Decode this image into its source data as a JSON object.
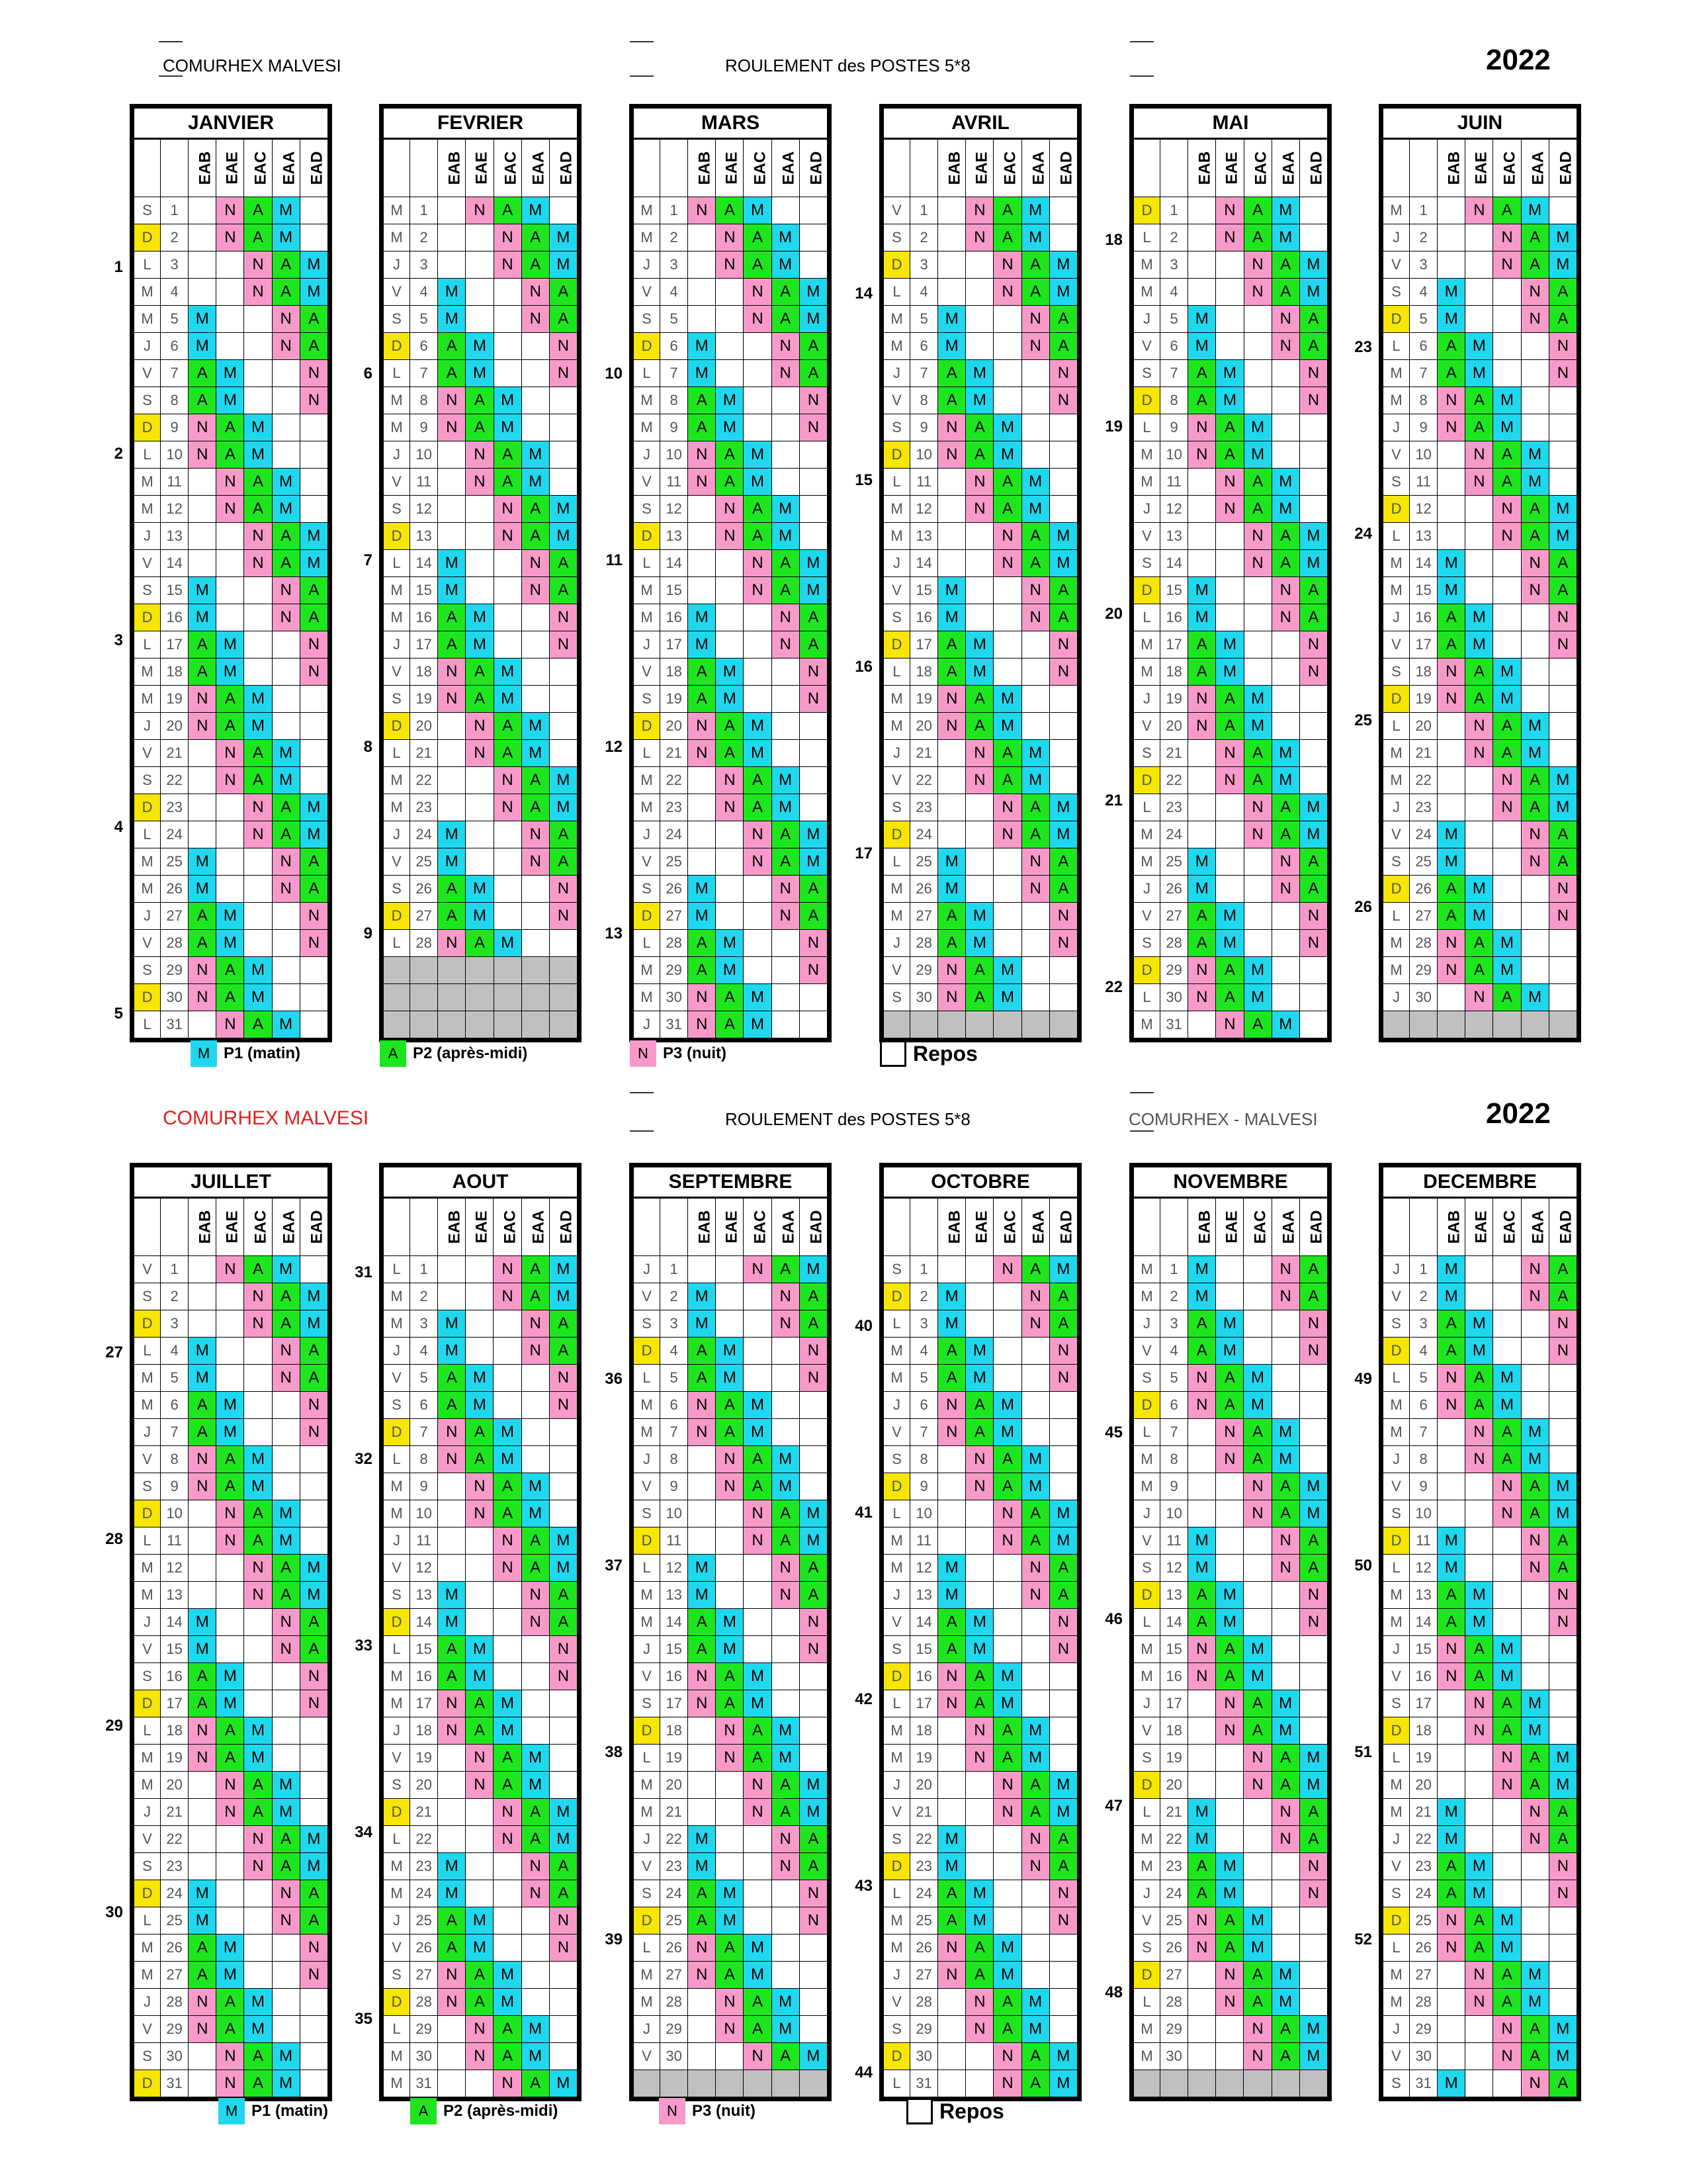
{
  "header_top": {
    "left": "COMURHEX MALVESI",
    "center": "ROULEMENT des POSTES 5*8",
    "year": "2022"
  },
  "header_bottom": {
    "left": "COMURHEX MALVESI",
    "center": "ROULEMENT des POSTES 5*8",
    "right": "COMURHEX - MALVESI",
    "year": "2022"
  },
  "colors": {
    "M": "#1fd8ee",
    "A": "#1ee61e",
    "N": "#f79ac9",
    "D": "#f7e600",
    "left_title": "#e02020"
  },
  "columns": [
    "EAB",
    "EAE",
    "EAC",
    "EAA",
    "EAD"
  ],
  "legend": {
    "m_letter": "M",
    "m_label": "P1 (matin)",
    "a_letter": "A",
    "a_label": "P2 (après-midi)",
    "n_letter": "N",
    "n_label": "P3 (nuit)",
    "repos": "Repos"
  },
  "months": [
    {
      "name": "JANVIER",
      "first_dow": 5,
      "ndays": 31
    },
    {
      "name": "FEVRIER",
      "first_dow": 1,
      "ndays": 28
    },
    {
      "name": "MARS",
      "first_dow": 1,
      "ndays": 31
    },
    {
      "name": "AVRIL",
      "first_dow": 4,
      "ndays": 30
    },
    {
      "name": "MAI",
      "first_dow": 6,
      "ndays": 31
    },
    {
      "name": "JUIN",
      "first_dow": 2,
      "ndays": 30
    },
    {
      "name": "JUILLET",
      "first_dow": 4,
      "ndays": 31
    },
    {
      "name": "AOUT",
      "first_dow": 0,
      "ndays": 31
    },
    {
      "name": "SEPTEMBRE",
      "first_dow": 3,
      "ndays": 30
    },
    {
      "name": "OCTOBRE",
      "first_dow": 5,
      "ndays": 31
    },
    {
      "name": "NOVEMBRE",
      "first_dow": 1,
      "ndays": 30
    },
    {
      "name": "DECEMBRE",
      "first_dow": 3,
      "ndays": 31
    }
  ],
  "dow_letters": [
    "L",
    "M",
    "M",
    "J",
    "V",
    "S",
    "D"
  ],
  "rotation": {
    "start": "2022-01-01",
    "pattern": [
      "-NAM-",
      "-NAM-",
      "--NAM",
      "--NAM",
      "M--NA",
      "M--NA",
      "AM--N",
      "AM--N",
      "NAM--",
      "NAM--"
    ]
  }
}
